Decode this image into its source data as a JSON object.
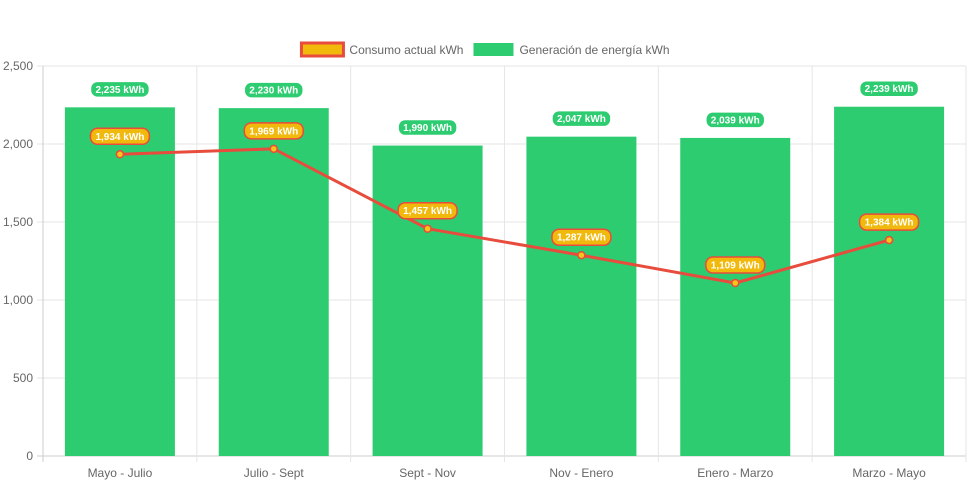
{
  "chart_data": {
    "type": "bar",
    "categories": [
      "Mayo - Julio",
      "Julio - Sept",
      "Sept - Nov",
      "Nov - Enero",
      "Enero - Marzo",
      "Marzo - Mayo"
    ],
    "series": [
      {
        "name": "Consumo actual kWh",
        "render": "line",
        "values": [
          1934,
          1969,
          1457,
          1287,
          1109,
          1384
        ],
        "data_labels": [
          "1,934 kWh",
          "1,969 kWh",
          "1,457 kWh",
          "1,287 kWh",
          "1,109 kWh",
          "1,384 kWh"
        ],
        "color": "#e74c3c",
        "point_color": "#f5c518",
        "label_color": "#f0b90b"
      },
      {
        "name": "Generación de energía kWh",
        "render": "bar",
        "values": [
          2235,
          2230,
          1990,
          2047,
          2039,
          2239
        ],
        "data_labels": [
          "2,235 kWh",
          "2,230 kWh",
          "1,990 kWh",
          "2,047 kWh",
          "2,039 kWh",
          "2,239 kWh"
        ],
        "color": "#2ecc71"
      }
    ],
    "y_ticks": [
      0,
      500,
      1000,
      1500,
      2000,
      2500
    ],
    "y_tick_labels": [
      "0",
      "500",
      "1,000",
      "1,500",
      "2,000",
      "2,500"
    ],
    "ylim": [
      0,
      2500
    ],
    "grid": true,
    "legend": "top-center",
    "title": "",
    "xlabel": "",
    "ylabel": ""
  }
}
